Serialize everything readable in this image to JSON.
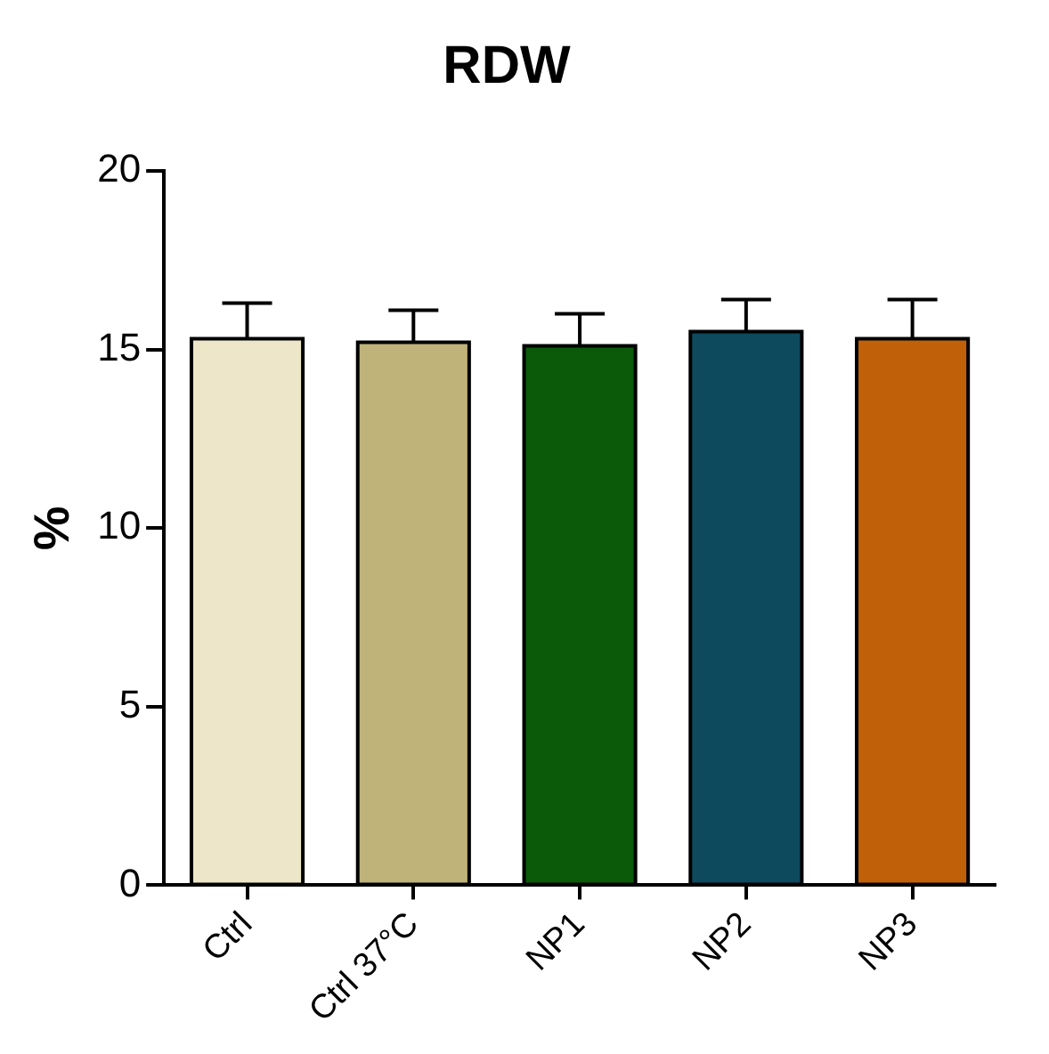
{
  "chart_data": {
    "type": "bar",
    "title": "RDW",
    "ylabel": "%",
    "categories": [
      "Ctrl",
      "Ctrl 37°C",
      "NP1",
      "NP2",
      "NP3"
    ],
    "values": [
      15.3,
      15.2,
      15.1,
      15.5,
      15.3
    ],
    "colors": [
      "#ede6c8",
      "#bfb37a",
      "#0a5a0a",
      "#0d4a5e",
      "#c0610a"
    ],
    "errors": [
      [
        15.3,
        16.3
      ],
      [
        15.2,
        16.1
      ],
      [
        15.1,
        16.0
      ],
      [
        15.5,
        16.4
      ],
      [
        15.3,
        16.4
      ]
    ],
    "ylim": [
      0,
      20
    ],
    "yticks": [
      0,
      5,
      10,
      15,
      20
    ],
    "grid": false,
    "legend": false
  }
}
